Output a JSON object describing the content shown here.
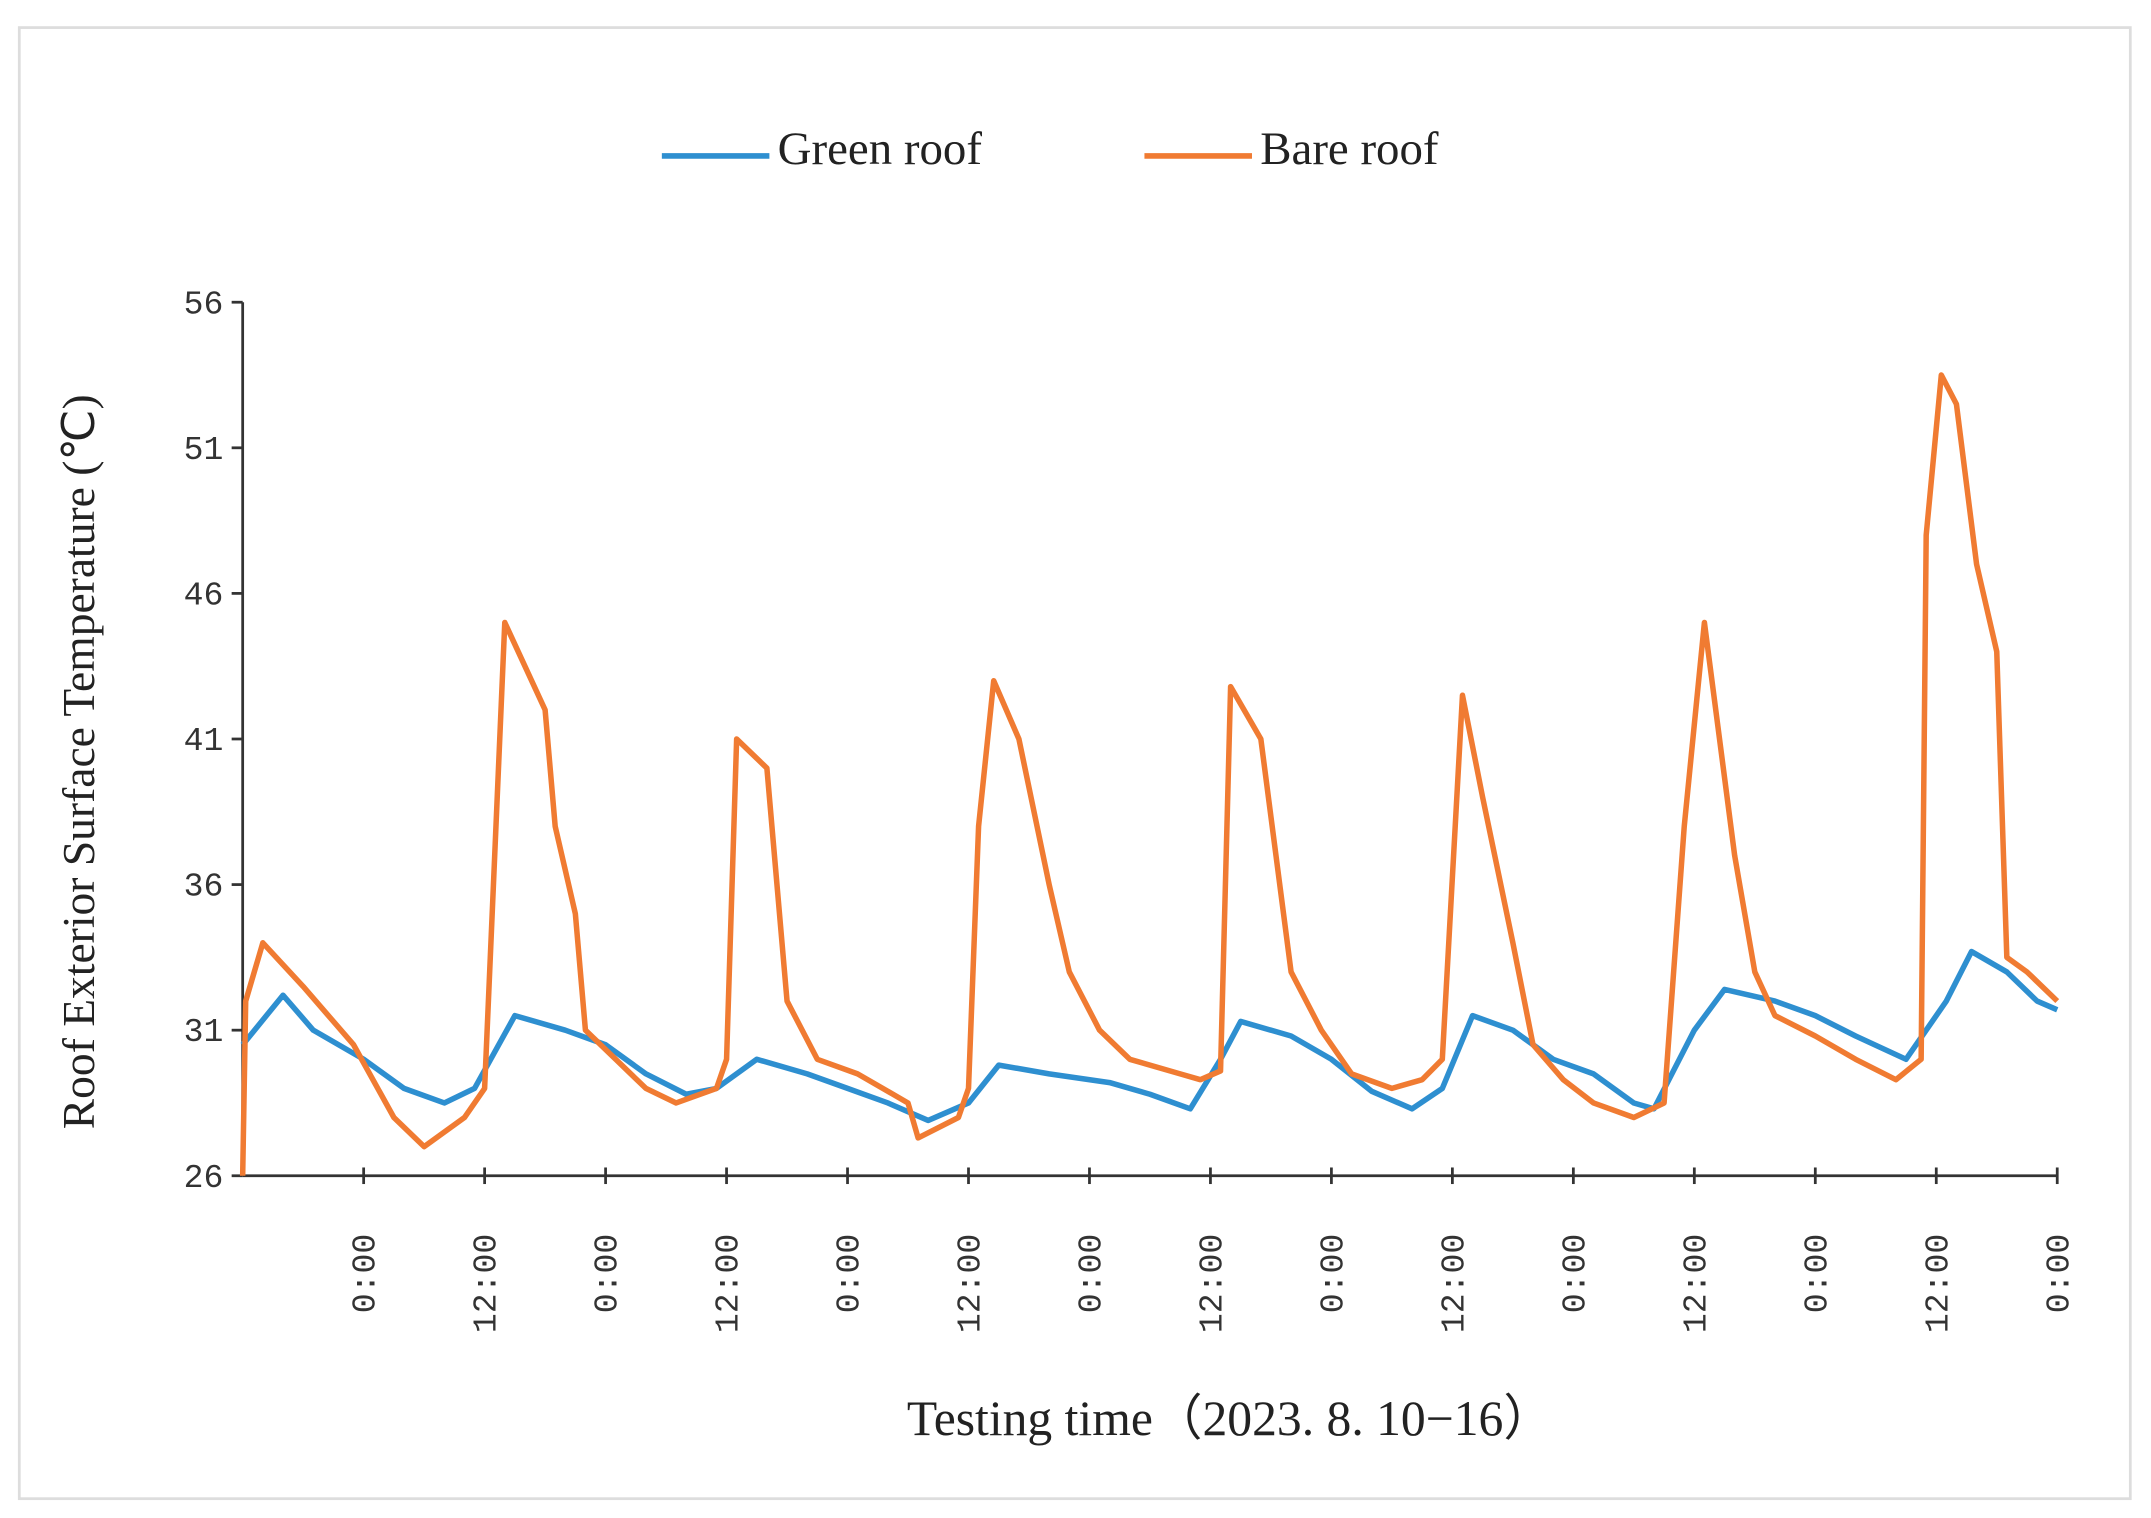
{
  "chart_data": {
    "type": "line",
    "y_label": "Roof Exterior Surface Temperature (℃)",
    "x_label": "Testing time（2023. 8. 10−16）",
    "xlim": [
      0,
      180
    ],
    "ylim": [
      26,
      56
    ],
    "yticks": [
      26,
      31,
      36,
      41,
      46,
      51,
      56
    ],
    "xticks": [
      {
        "value": 12,
        "label": "0:00"
      },
      {
        "value": 24,
        "label": "12:00"
      },
      {
        "value": 36,
        "label": "0:00"
      },
      {
        "value": 48,
        "label": "12:00"
      },
      {
        "value": 60,
        "label": "0:00"
      },
      {
        "value": 72,
        "label": "12:00"
      },
      {
        "value": 84,
        "label": "0:00"
      },
      {
        "value": 96,
        "label": "12:00"
      },
      {
        "value": 108,
        "label": "0:00"
      },
      {
        "value": 120,
        "label": "12:00"
      },
      {
        "value": 132,
        "label": "0:00"
      },
      {
        "value": 144,
        "label": "12:00"
      },
      {
        "value": 156,
        "label": "0:00"
      },
      {
        "value": 168,
        "label": "12:00"
      },
      {
        "value": 180,
        "label": "0:00"
      }
    ],
    "grid": false,
    "legend": "top",
    "series": [
      {
        "name": "Green roof",
        "color": "#2e8fd0",
        "x": [
          0,
          4,
          7,
          12,
          16,
          20,
          23,
          27,
          32,
          36,
          40,
          44,
          47,
          51,
          56,
          60,
          64,
          68,
          72,
          75,
          80,
          86,
          90,
          94,
          97,
          99,
          104,
          108,
          112,
          116,
          119,
          122,
          126,
          130,
          134,
          138,
          140,
          144,
          147,
          152,
          156,
          160,
          165,
          169,
          171.5,
          175,
          178,
          180
        ],
        "values": [
          30.5,
          32.2,
          31,
          30,
          29,
          28.5,
          29,
          31.5,
          31,
          30.5,
          29.5,
          28.8,
          29,
          30,
          29.5,
          29,
          28.5,
          27.9,
          28.5,
          29.8,
          29.5,
          29.2,
          28.8,
          28.3,
          30,
          31.3,
          30.8,
          30,
          28.9,
          28.3,
          29,
          31.5,
          31,
          30,
          29.5,
          28.5,
          28.3,
          31,
          32.4,
          32,
          31.5,
          30.8,
          30,
          32,
          33.7,
          33,
          32,
          31.7
        ]
      },
      {
        "name": "Bare roof",
        "color": "#f07b32",
        "x": [
          0,
          0.3,
          2,
          6,
          11,
          15,
          18,
          22,
          24,
          26,
          30,
          31,
          33,
          34,
          37,
          40,
          43,
          47,
          48,
          49,
          52,
          54,
          57,
          61,
          66,
          67,
          71,
          72,
          73,
          74.5,
          77,
          80,
          82,
          85,
          88,
          93,
          95,
          97,
          98,
          101,
          104,
          107,
          110,
          114,
          117,
          119,
          121,
          123,
          126,
          128,
          131,
          134,
          138,
          141,
          143,
          145,
          148,
          150,
          152,
          156,
          160,
          164,
          166.5,
          167,
          168.5,
          170,
          172,
          174,
          175,
          177,
          180
        ],
        "values": [
          26,
          32,
          34,
          32.5,
          30.5,
          28,
          27,
          28,
          29,
          45,
          42,
          38,
          35,
          31,
          30,
          29,
          28.5,
          29,
          30,
          41,
          40,
          32,
          30,
          29.5,
          28.5,
          27.3,
          28,
          29,
          38,
          43,
          41,
          36,
          33,
          31,
          30,
          29.5,
          29.3,
          29.6,
          42.8,
          41,
          33,
          31,
          29.5,
          29,
          29.3,
          30,
          42.5,
          39,
          34,
          30.5,
          29.3,
          28.5,
          28,
          28.5,
          38,
          45,
          37,
          33,
          31.5,
          30.8,
          30,
          29.3,
          30,
          48,
          53.5,
          52.5,
          47,
          44,
          33.5,
          33,
          32
        ]
      }
    ]
  }
}
